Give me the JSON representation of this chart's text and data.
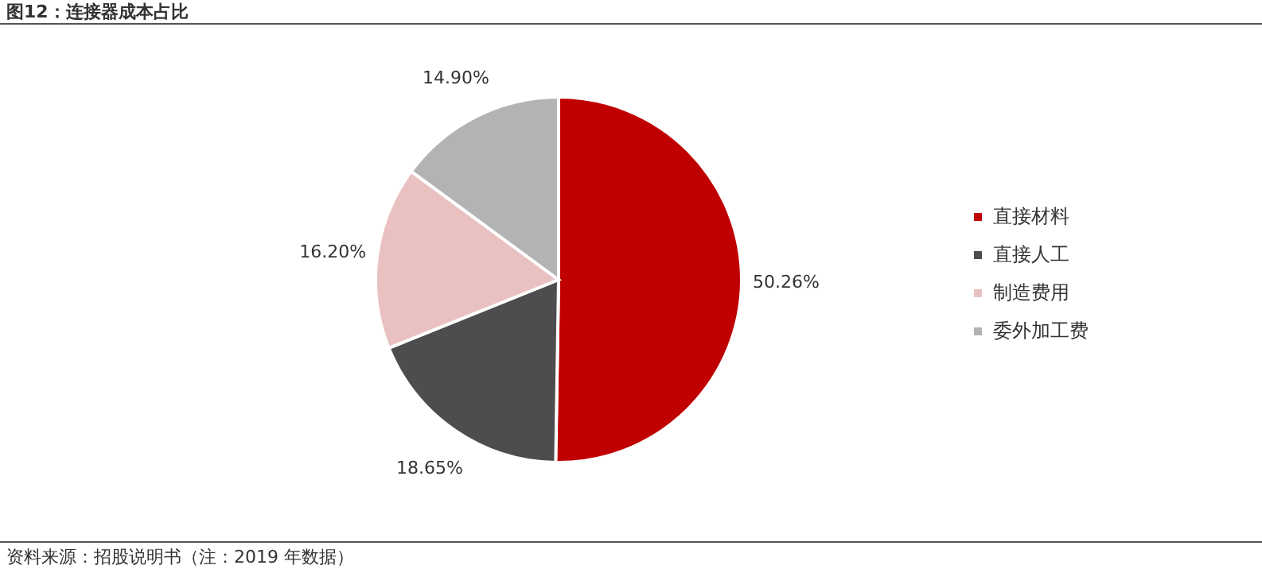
{
  "chart_data": {
    "type": "pie",
    "title": "图12：连接器成本占比",
    "categories": [
      "直接材料",
      "直接人工",
      "制造费用",
      "委外加工费"
    ],
    "values": [
      50.26,
      18.65,
      16.2,
      14.9
    ],
    "colors": [
      "#c00000",
      "#4d4d4f",
      "#eac1c1",
      "#b3b3b3"
    ],
    "value_labels": [
      "50.26%",
      "18.65%",
      "16.20%",
      "14.90%"
    ],
    "legend": "right",
    "annotations": [
      "资料来源：招股说明书（注：2019 年数据）"
    ]
  }
}
